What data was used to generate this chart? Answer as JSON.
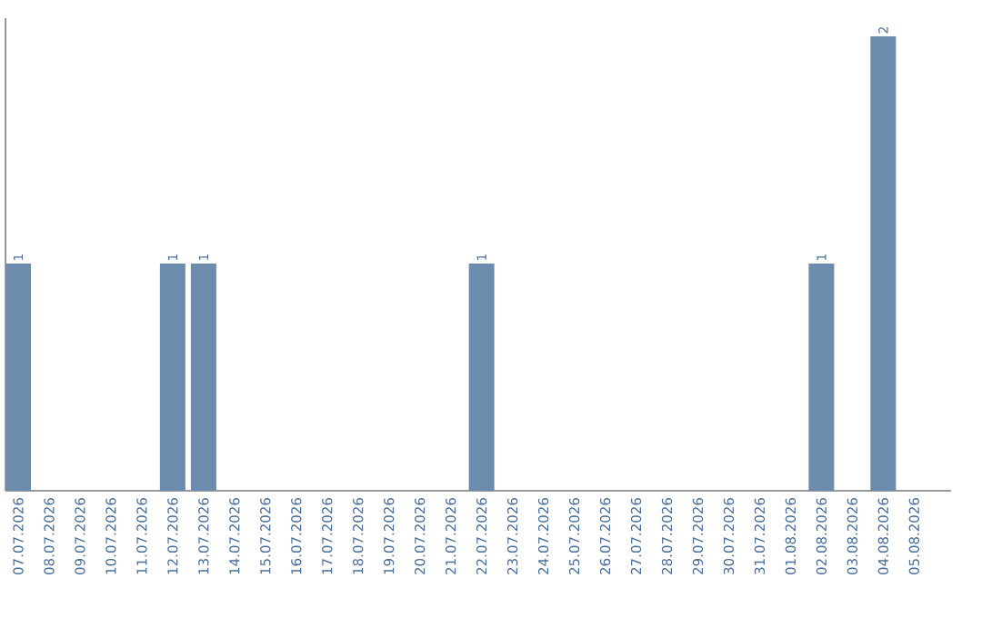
{
  "chart_data": {
    "type": "bar",
    "categories": [
      "07.07.2026",
      "08.07.2026",
      "09.07.2026",
      "10.07.2026",
      "11.07.2026",
      "12.07.2026",
      "13.07.2026",
      "14.07.2026",
      "15.07.2026",
      "16.07.2026",
      "17.07.2026",
      "18.07.2026",
      "19.07.2026",
      "20.07.2026",
      "21.07.2026",
      "22.07.2026",
      "23.07.2026",
      "24.07.2026",
      "25.07.2026",
      "26.07.2026",
      "27.07.2026",
      "28.07.2026",
      "29.07.2026",
      "30.07.2026",
      "31.07.2026",
      "01.08.2026",
      "02.08.2026",
      "03.08.2026",
      "04.08.2026",
      "05.08.2026"
    ],
    "values": [
      1,
      0,
      0,
      0,
      0,
      1,
      1,
      0,
      0,
      0,
      0,
      0,
      0,
      0,
      0,
      1,
      0,
      0,
      0,
      0,
      0,
      0,
      0,
      0,
      0,
      0,
      1,
      0,
      2,
      0
    ],
    "value_labels": [
      "1",
      null,
      null,
      null,
      null,
      "1",
      "1",
      null,
      null,
      null,
      null,
      null,
      null,
      null,
      null,
      "1",
      null,
      null,
      null,
      null,
      null,
      null,
      null,
      null,
      null,
      null,
      "1",
      null,
      "2",
      null
    ],
    "color": "#6b8cac",
    "grid": false
  }
}
